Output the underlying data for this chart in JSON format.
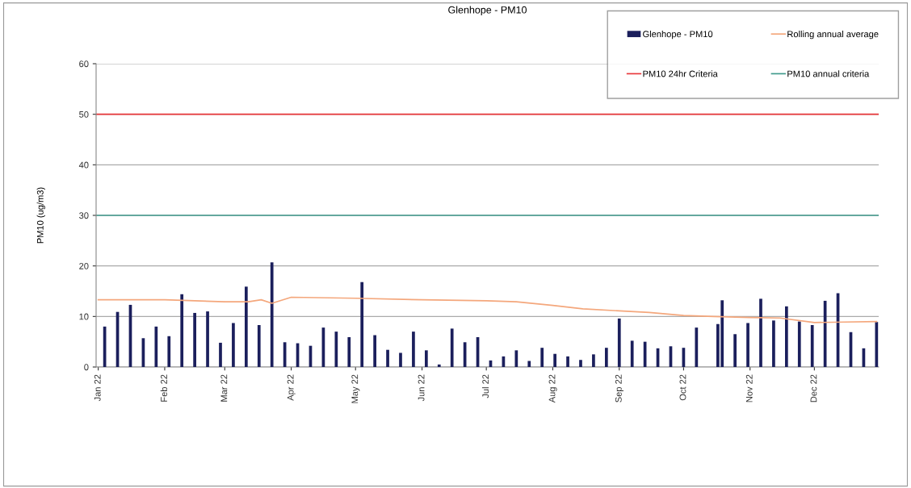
{
  "chart_data": {
    "type": "bar",
    "title": "Glenhope - PM10",
    "ylabel": "PM10 (ug/m3)",
    "x": [
      "2022-01-04",
      "2022-01-10",
      "2022-01-16",
      "2022-01-22",
      "2022-01-28",
      "2022-02-03",
      "2022-02-09",
      "2022-02-15",
      "2022-02-21",
      "2022-02-27",
      "2022-03-05",
      "2022-03-11",
      "2022-03-17",
      "2022-03-23",
      "2022-03-29",
      "2022-04-04",
      "2022-04-10",
      "2022-04-16",
      "2022-04-22",
      "2022-04-28",
      "2022-05-04",
      "2022-05-10",
      "2022-05-16",
      "2022-05-22",
      "2022-05-28",
      "2022-06-03",
      "2022-06-09",
      "2022-06-15",
      "2022-06-21",
      "2022-06-27",
      "2022-07-03",
      "2022-07-09",
      "2022-07-15",
      "2022-07-21",
      "2022-07-27",
      "2022-08-02",
      "2022-08-08",
      "2022-08-14",
      "2022-08-20",
      "2022-08-26",
      "2022-09-01",
      "2022-09-07",
      "2022-09-13",
      "2022-09-19",
      "2022-09-25",
      "2022-10-01",
      "2022-10-07",
      "2022-10-17",
      "2022-10-19",
      "2022-10-25",
      "2022-10-31",
      "2022-11-06",
      "2022-11-12",
      "2022-11-18",
      "2022-11-24",
      "2022-11-30",
      "2022-12-06",
      "2022-12-12",
      "2022-12-18",
      "2022-12-24",
      "2022-12-30"
    ],
    "series": [
      {
        "name": "Glenhope - PM10",
        "color": "#1b1f5c",
        "values": [
          8.0,
          10.9,
          12.3,
          5.7,
          8.0,
          6.1,
          14.4,
          10.7,
          11.0,
          4.8,
          8.7,
          15.9,
          8.3,
          20.7,
          4.9,
          4.7,
          4.2,
          7.8,
          7.0,
          5.9,
          16.8,
          6.3,
          3.4,
          2.8,
          7.0,
          3.3,
          0.5,
          7.6,
          4.9,
          5.9,
          1.3,
          2.1,
          3.3,
          1.2,
          3.8,
          2.6,
          2.1,
          1.4,
          2.5,
          3.8,
          9.6,
          5.2,
          5.0,
          3.7,
          4.1,
          3.8,
          7.8,
          8.5,
          13.2,
          6.5,
          8.7,
          13.5,
          9.2,
          12.0,
          9.0,
          8.3,
          13.1,
          14.6,
          6.9,
          3.7,
          8.9
        ]
      },
      {
        "name": "Rolling annual average",
        "type": "line",
        "color": "#f4a77c",
        "x": [
          "2022-01-01",
          "2022-02-01",
          "2022-03-01",
          "2022-03-12",
          "2022-03-18",
          "2022-03-23",
          "2022-04-01",
          "2022-05-01",
          "2022-06-01",
          "2022-07-01",
          "2022-07-15",
          "2022-08-01",
          "2022-08-15",
          "2022-09-01",
          "2022-09-15",
          "2022-10-01",
          "2022-10-15",
          "2022-11-01",
          "2022-11-15",
          "2022-12-01",
          "2022-12-15",
          "2022-12-30"
        ],
        "values": [
          13.3,
          13.3,
          12.9,
          12.9,
          13.3,
          12.6,
          13.8,
          13.6,
          13.3,
          13.1,
          12.9,
          12.2,
          11.5,
          11.1,
          10.8,
          10.2,
          10.0,
          9.8,
          9.7,
          8.8,
          8.9,
          9.0
        ]
      }
    ],
    "ref_lines": [
      {
        "axis": "y",
        "value": 50,
        "label": "PM10 24hr Criteria",
        "color": "#e8373a"
      },
      {
        "axis": "y",
        "value": 30,
        "label": "PM10 annual criteria",
        "color": "#3f9a8c"
      }
    ],
    "xlim": [
      "2021-12-31",
      "2022-12-31"
    ],
    "xticks": [
      {
        "value": "2022-01-01",
        "label": "Jan 22"
      },
      {
        "value": "2022-02-01",
        "label": "Feb 22"
      },
      {
        "value": "2022-03-01",
        "label": "Mar 22"
      },
      {
        "value": "2022-04-01",
        "label": "Apr 22"
      },
      {
        "value": "2022-05-01",
        "label": "May 22"
      },
      {
        "value": "2022-06-01",
        "label": "Jun 22"
      },
      {
        "value": "2022-07-01",
        "label": "Jul 22"
      },
      {
        "value": "2022-08-01",
        "label": "Aug 22"
      },
      {
        "value": "2022-09-01",
        "label": "Sep 22"
      },
      {
        "value": "2022-10-01",
        "label": "Oct 22"
      },
      {
        "value": "2022-11-01",
        "label": "Nov 22"
      },
      {
        "value": "2022-12-01",
        "label": "Dec 22"
      }
    ],
    "ylim": [
      0,
      60
    ],
    "yticks": [
      0,
      10,
      20,
      30,
      40,
      50,
      60
    ],
    "grid": "y",
    "legend": "top right"
  }
}
